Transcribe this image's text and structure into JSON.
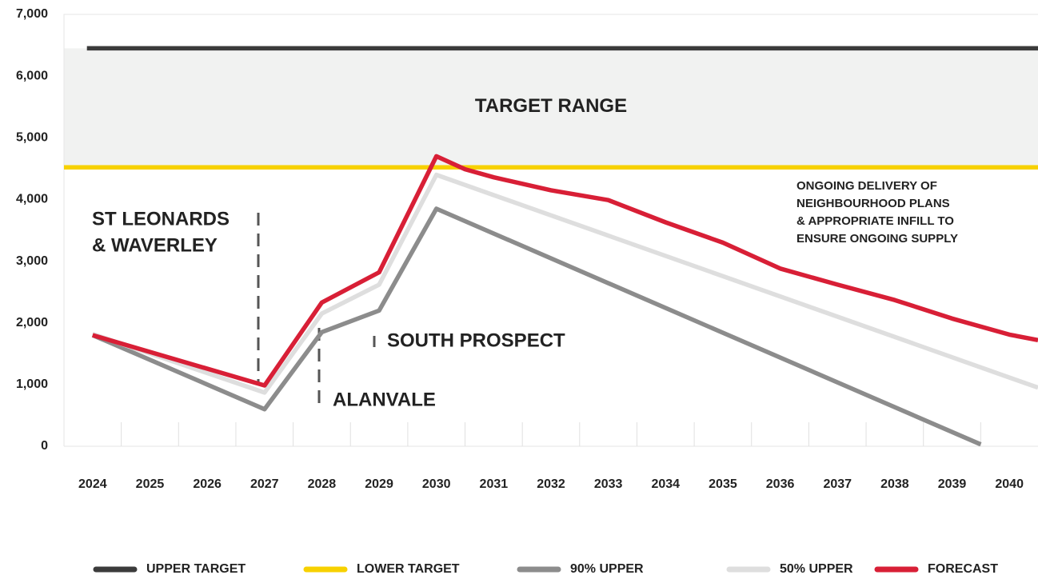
{
  "chart_data": {
    "type": "line",
    "xlim": [
      2023.5,
      2040.5
    ],
    "xticks": [
      2024,
      2025,
      2026,
      2027,
      2028,
      2029,
      2030,
      2031,
      2032,
      2033,
      2034,
      2035,
      2036,
      2037,
      2038,
      2039,
      2040
    ],
    "ylim": [
      0,
      7000
    ],
    "yticks": [
      0,
      {
        "value": 1000,
        "label": "1,000"
      },
      {
        "value": 2000,
        "label": "2,000"
      },
      {
        "value": 3000,
        "label": "3,000"
      },
      {
        "value": 4000,
        "label": "4,000"
      },
      {
        "value": 5000,
        "label": "5,000"
      },
      {
        "value": 6000,
        "label": "6,000"
      },
      {
        "value": 7000,
        "label": "7,000"
      }
    ],
    "series": [
      {
        "name": "UPPER TARGET",
        "color": "#3b3b3b",
        "x": [
          2023.9,
          2040.5
        ],
        "values": [
          6450,
          6450
        ]
      },
      {
        "name": "LOWER TARGET",
        "color": "#f7d100",
        "x": [
          2023.5,
          2040.5
        ],
        "values": [
          4520,
          4520
        ]
      },
      {
        "name": "90% UPPER",
        "color": "#8c8c8c",
        "x": [
          2024,
          2027,
          2028,
          2029,
          2030,
          2039.5
        ],
        "values": [
          1800,
          600,
          1850,
          2200,
          3850,
          30
        ]
      },
      {
        "name": "50% UPPER",
        "color": "#dedede",
        "x": [
          2024,
          2027,
          2028,
          2029,
          2030,
          2040.5
        ],
        "values": [
          1820,
          870,
          2150,
          2620,
          4400,
          950
        ]
      },
      {
        "name": "FORECAST",
        "color": "#d81f36",
        "x": [
          2024,
          2027,
          2028,
          2029,
          2030,
          2030.5,
          2031,
          2032,
          2033,
          2034,
          2035,
          2036,
          2037,
          2038,
          2039,
          2040,
          2040.5
        ],
        "values": [
          1800,
          985,
          2330,
          2820,
          4700,
          4490,
          4360,
          4150,
          3990,
          3630,
          3300,
          2880,
          2620,
          2370,
          2070,
          1810,
          1720
        ]
      }
    ],
    "band_label": "TARGET RANGE",
    "annotations": [
      {
        "lines": [
          "ST LEONARDS",
          "& WAVERLEY"
        ]
      },
      {
        "lines": [
          "SOUTH PROSPECT"
        ]
      },
      {
        "lines": [
          "ALANVALE"
        ]
      },
      {
        "lines": [
          "ONGOING DELIVERY OF",
          "NEIGHBOURHOOD PLANS",
          "& APPROPRIATE INFILL TO",
          "ENSURE ONGOING SUPPLY"
        ]
      }
    ]
  }
}
